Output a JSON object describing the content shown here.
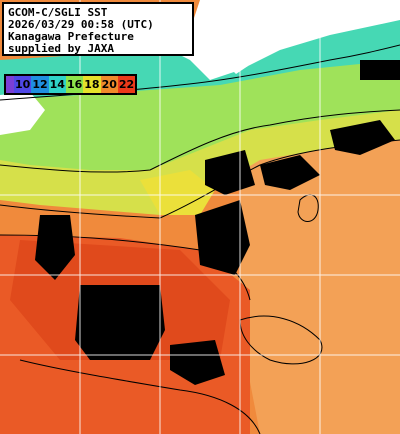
{
  "header": {
    "line1": "GCOM-C/SGLI SST",
    "line2": "2026/03/29 00:58 (UTC)",
    "line3": "Kanagawa Prefecture",
    "line4": "supplied by JAXA"
  },
  "legend": {
    "unit": "",
    "items": [
      {
        "label": "10",
        "color": "#4f47e6"
      },
      {
        "label": "12",
        "color": "#1f8fe0"
      },
      {
        "label": "14",
        "color": "#2fd3c8"
      },
      {
        "label": "16",
        "color": "#8ee44a"
      },
      {
        "label": "18",
        "color": "#e6e12a"
      },
      {
        "label": "20",
        "color": "#f08a2a"
      },
      {
        "label": "22",
        "color": "#ec3a1a"
      }
    ],
    "lead_color": "#7a3fd6"
  },
  "colors": {
    "land": "#ffffff",
    "cloud_or_no_data": "#000000",
    "warm_water": "#f08a3c",
    "hot_water": "#ea5a26",
    "cool_water": "#8fe07a",
    "coastal_water": "#46d8b4",
    "grid": "#ffffff"
  }
}
